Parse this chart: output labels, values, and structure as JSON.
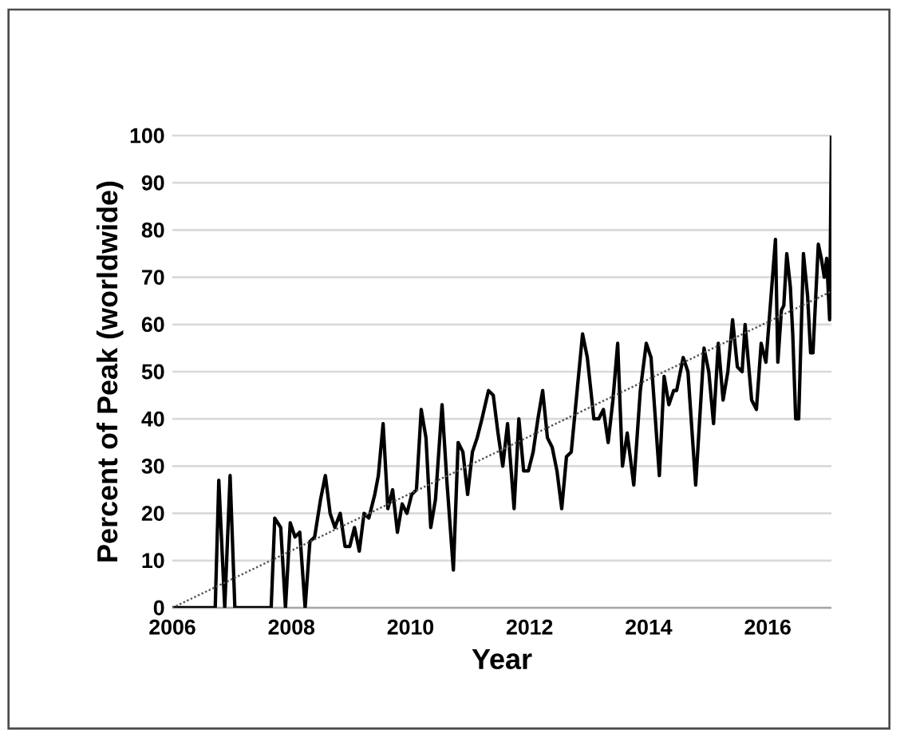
{
  "chart_data": {
    "type": "line",
    "xlabel": "Year",
    "ylabel": "Percent of Peak (worldwide)",
    "xlim": [
      2006,
      2017.07
    ],
    "ylim": [
      0,
      100
    ],
    "xticks": [
      2006,
      2008,
      2010,
      2012,
      2014,
      2016
    ],
    "yticks": [
      0,
      10,
      20,
      30,
      40,
      50,
      60,
      70,
      80,
      90,
      100
    ],
    "grid": "y",
    "marker": "none",
    "series": [
      {
        "color": "#000000",
        "line_style": "solid",
        "x": [
          2006.0,
          2006.72,
          2006.78,
          2006.88,
          2006.97,
          2007.05,
          2007.66,
          2007.72,
          2007.82,
          2007.9,
          2007.98,
          2008.06,
          2008.14,
          2008.23,
          2008.31,
          2008.39,
          2008.49,
          2008.57,
          2008.65,
          2008.73,
          2008.82,
          2008.9,
          2008.98,
          2009.06,
          2009.14,
          2009.22,
          2009.3,
          2009.4,
          2009.46,
          2009.54,
          2009.62,
          2009.7,
          2009.78,
          2009.86,
          2009.94,
          2010.02,
          2010.1,
          2010.18,
          2010.26,
          2010.34,
          2010.42,
          2010.53,
          2010.61,
          2010.72,
          2010.8,
          2010.88,
          2010.96,
          2011.04,
          2011.12,
          2011.2,
          2011.31,
          2011.39,
          2011.47,
          2011.55,
          2011.63,
          2011.74,
          2011.82,
          2011.9,
          2011.98,
          2012.06,
          2012.14,
          2012.22,
          2012.3,
          2012.38,
          2012.46,
          2012.54,
          2012.62,
          2012.7,
          2012.89,
          2012.97,
          2013.08,
          2013.16,
          2013.24,
          2013.32,
          2013.4,
          2013.48,
          2013.56,
          2013.64,
          2013.75,
          2013.86,
          2013.96,
          2014.04,
          2014.18,
          2014.26,
          2014.34,
          2014.42,
          2014.47,
          2014.58,
          2014.66,
          2014.79,
          2014.93,
          2015.01,
          2015.09,
          2015.17,
          2015.25,
          2015.33,
          2015.41,
          2015.49,
          2015.57,
          2015.62,
          2015.73,
          2015.81,
          2015.89,
          2015.97,
          2016.13,
          2016.17,
          2016.23,
          2016.27,
          2016.32,
          2016.38,
          2016.42,
          2016.47,
          2016.52,
          2016.6,
          2016.67,
          2016.72,
          2016.76,
          2016.85,
          2016.9,
          2016.95,
          2016.99,
          2017.04,
          2017.07
        ],
        "values": [
          0,
          0,
          27,
          0,
          28,
          0,
          0,
          19,
          17,
          0,
          18,
          15,
          16,
          0,
          14,
          15,
          23,
          28,
          20,
          17,
          20,
          13,
          13,
          17,
          12,
          20,
          19,
          24,
          28,
          39,
          21,
          25,
          16,
          22,
          20,
          24,
          25,
          42,
          36,
          17,
          23,
          43,
          27,
          8,
          35,
          33,
          24,
          33,
          36,
          40,
          46,
          45,
          37,
          30,
          39,
          21,
          40,
          29,
          29,
          33,
          40,
          46,
          36,
          34,
          29,
          21,
          32,
          33,
          58,
          53,
          40,
          40,
          42,
          35,
          44,
          56,
          30,
          37,
          26,
          46,
          56,
          53,
          28,
          49,
          43,
          46,
          46,
          53,
          50,
          26,
          55,
          50,
          39,
          56,
          44,
          50,
          61,
          51,
          50,
          60,
          44,
          42,
          56,
          52,
          78,
          52,
          63,
          64,
          75,
          68,
          58,
          40,
          40,
          75,
          66,
          54,
          54,
          77,
          74,
          70,
          74,
          61,
          100
        ]
      },
      {
        "color": "#555555",
        "line_style": "dotted",
        "x": [
          2006.0,
          2017.07
        ],
        "values": [
          0,
          67
        ]
      }
    ]
  }
}
